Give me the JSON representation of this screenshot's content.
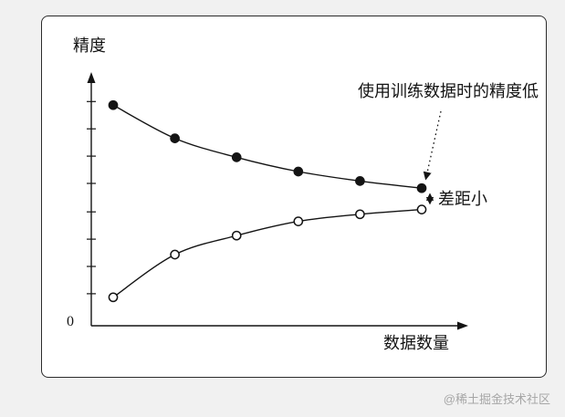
{
  "figure": {
    "ylabel": "精度",
    "xlabel": "数据数量",
    "origin_label": "0",
    "annotation_training": "使用训练数据时的精度低",
    "annotation_gap": "差距小"
  },
  "page": {
    "watermark": "@稀土掘金技术社区"
  },
  "chart_data": {
    "type": "line",
    "title": "",
    "xlabel": "数据数量",
    "ylabel": "精度",
    "x": [
      1,
      2,
      3,
      4,
      5,
      6
    ],
    "series": [
      {
        "name": "上方曲线（实心点）",
        "marker": "filled",
        "values": [
          0.93,
          0.79,
          0.71,
          0.65,
          0.61,
          0.58
        ]
      },
      {
        "name": "下方曲线（空心点）",
        "marker": "open",
        "values": [
          0.12,
          0.3,
          0.38,
          0.44,
          0.47,
          0.49
        ]
      }
    ],
    "ylim": [
      0,
      1
    ],
    "y_ticks": [
      0.135,
      0.25,
      0.365,
      0.48,
      0.6,
      0.715,
      0.83,
      0.945
    ],
    "grid": false,
    "legend": "none",
    "annotations": [
      {
        "text": "使用训练数据时的精度低",
        "target": "最后一个实心点（上方曲线终点）",
        "style": "dotted-arrow"
      },
      {
        "text": "差距小",
        "target": "两条曲线终点之间的间距",
        "style": "dotted-double-arrow"
      }
    ]
  }
}
